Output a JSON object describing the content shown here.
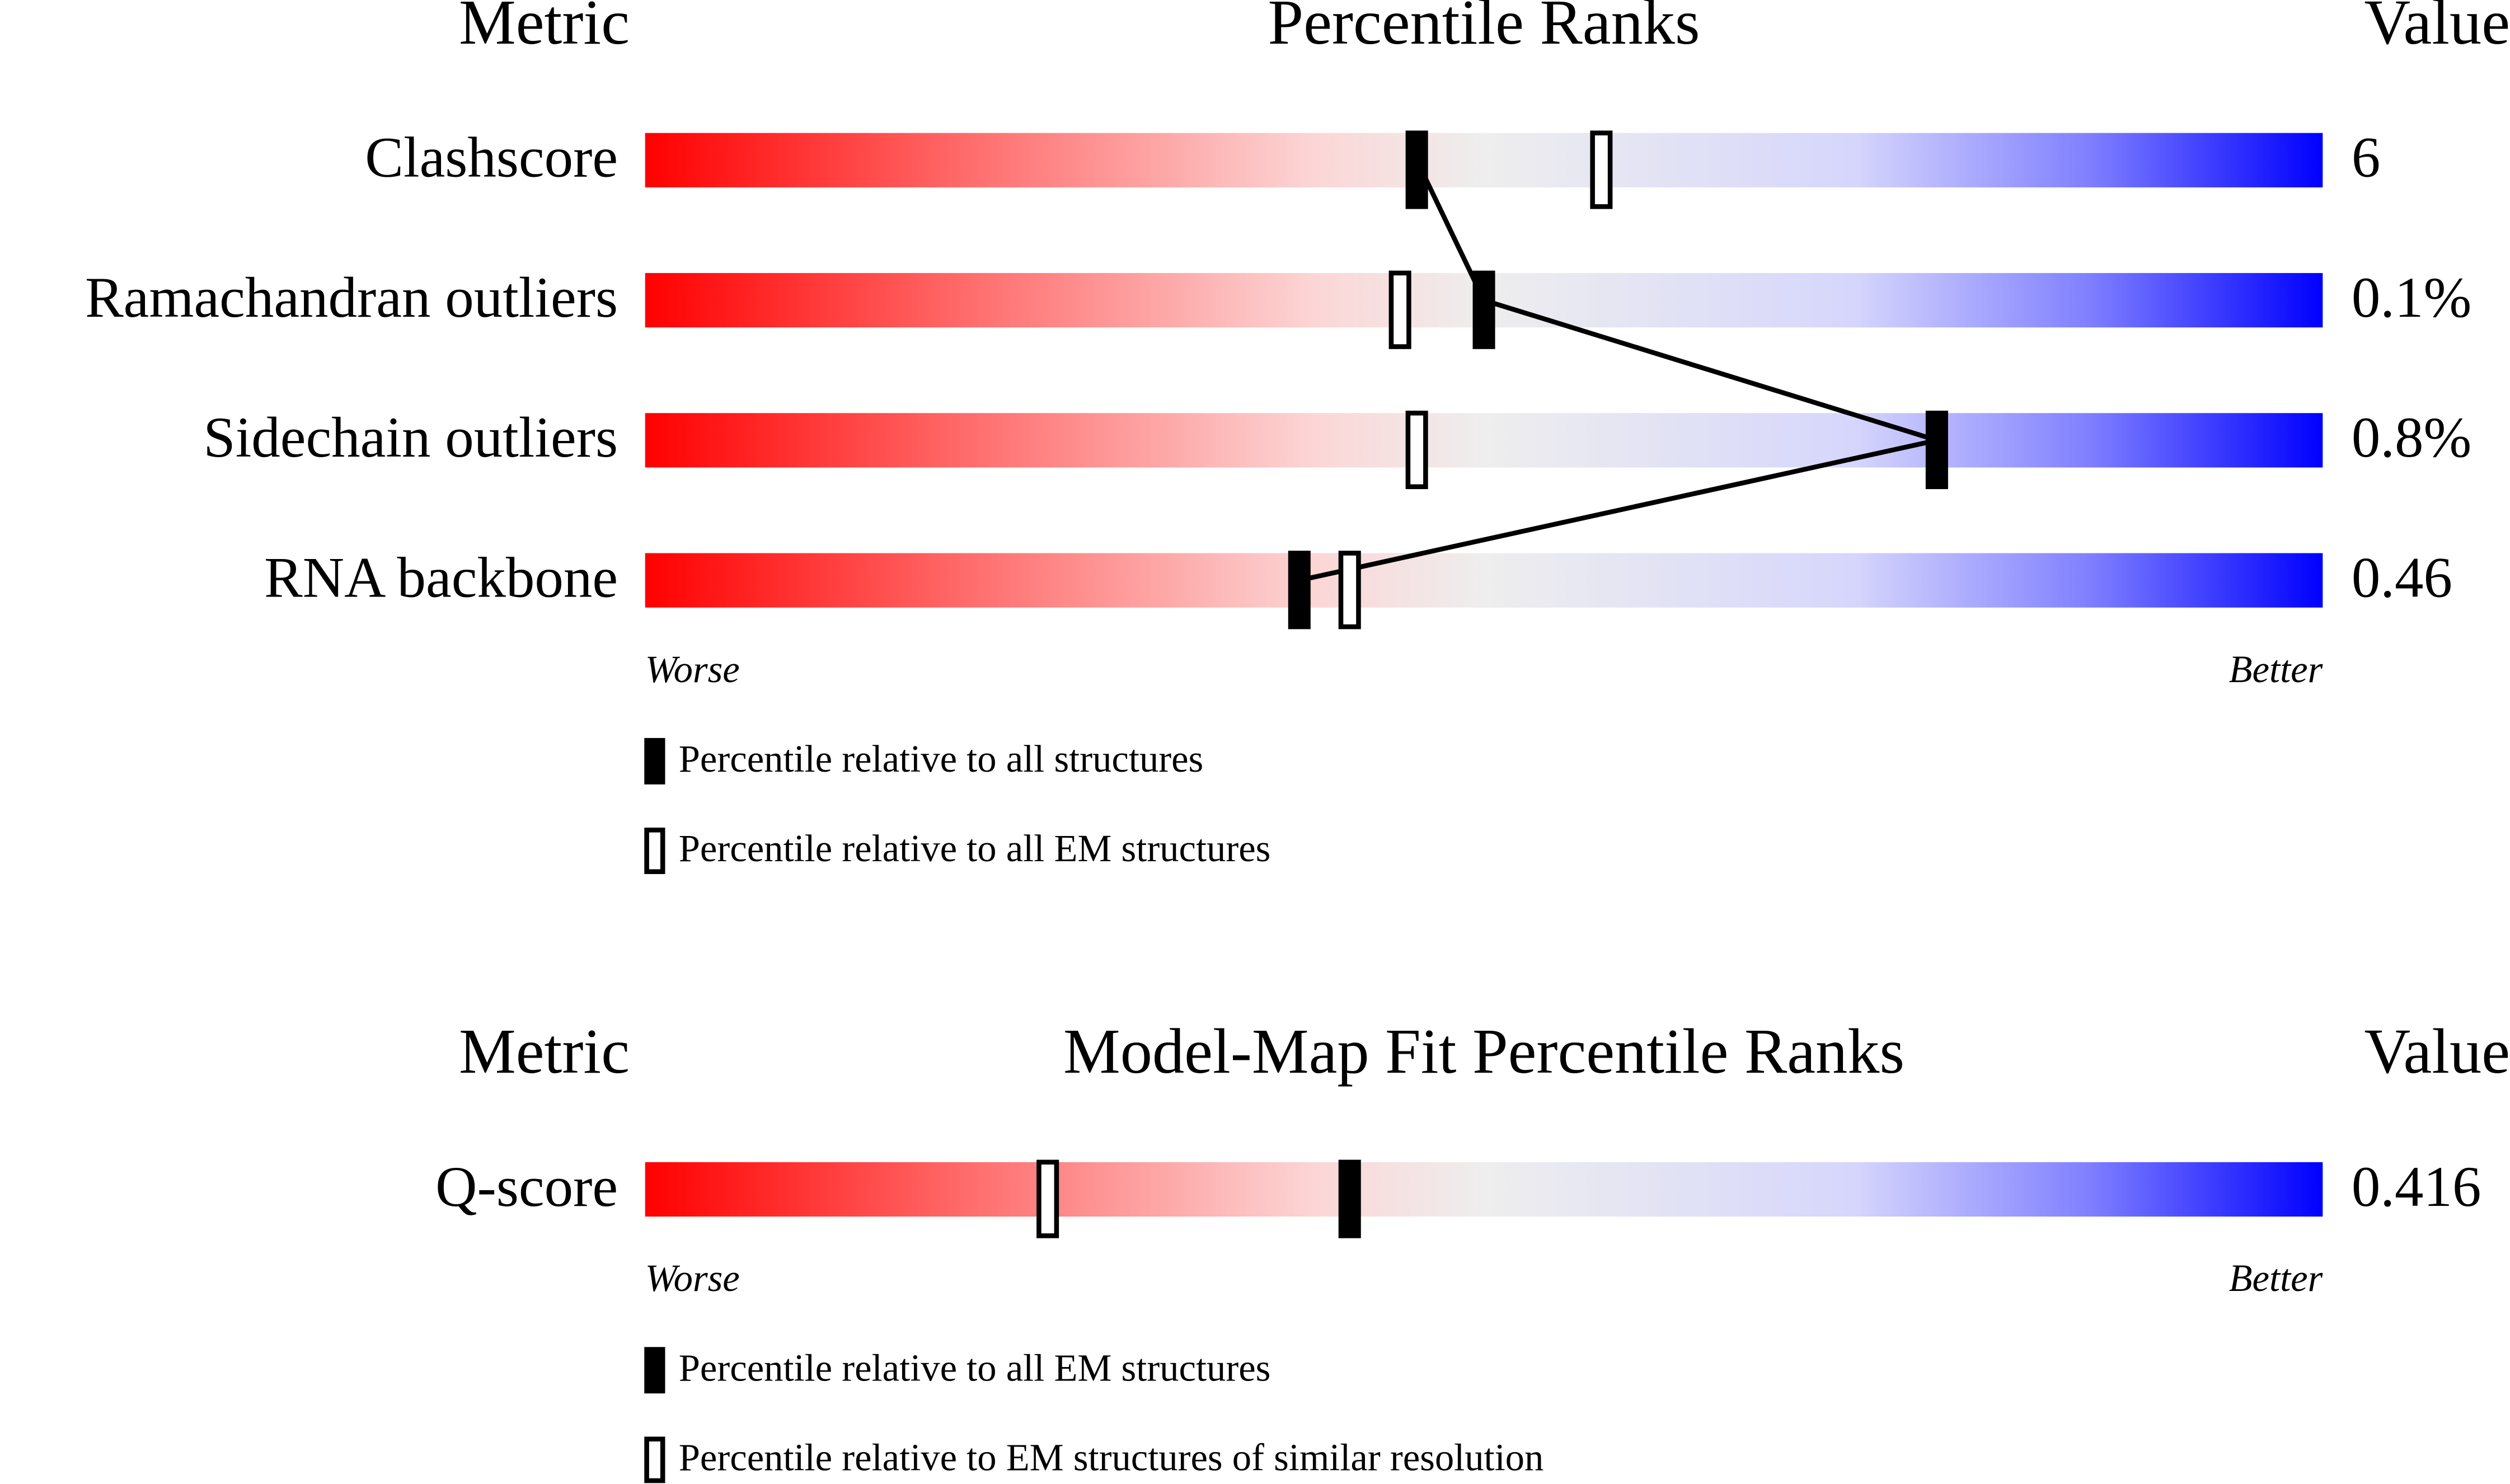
{
  "chart_data": [
    {
      "type": "slider",
      "metric_header": "Metric",
      "title": "Percentile Ranks",
      "value_header": "Value",
      "categories": [
        "Clashscore",
        "Ramachandran outliers",
        "Sidechain outliers",
        "RNA backbone"
      ],
      "value_labels": [
        "6",
        "0.1%",
        "0.8%",
        "0.46"
      ],
      "xlim": [
        0,
        100
      ],
      "left_label": "Worse",
      "right_label": "Better",
      "series": [
        {
          "name": "Percentile relative to all structures",
          "color": "#000000",
          "values": [
            46,
            50,
            77,
            39
          ]
        },
        {
          "name": "Percentile relative to all EM structures",
          "color": "#ffffff",
          "values": [
            57,
            45,
            46,
            42
          ]
        }
      ]
    },
    {
      "type": "slider",
      "metric_header": "Metric",
      "title": "Model-Map Fit Percentile Ranks",
      "value_header": "Value",
      "categories": [
        "Q-score"
      ],
      "value_labels": [
        "0.416"
      ],
      "xlim": [
        0,
        100
      ],
      "left_label": "Worse",
      "right_label": "Better",
      "series": [
        {
          "name": "Percentile relative to all EM structures",
          "color": "#000000",
          "values": [
            42
          ]
        },
        {
          "name": "Percentile relative to EM structures of similar resolution",
          "color": "#ffffff",
          "values": [
            24
          ]
        }
      ]
    }
  ]
}
